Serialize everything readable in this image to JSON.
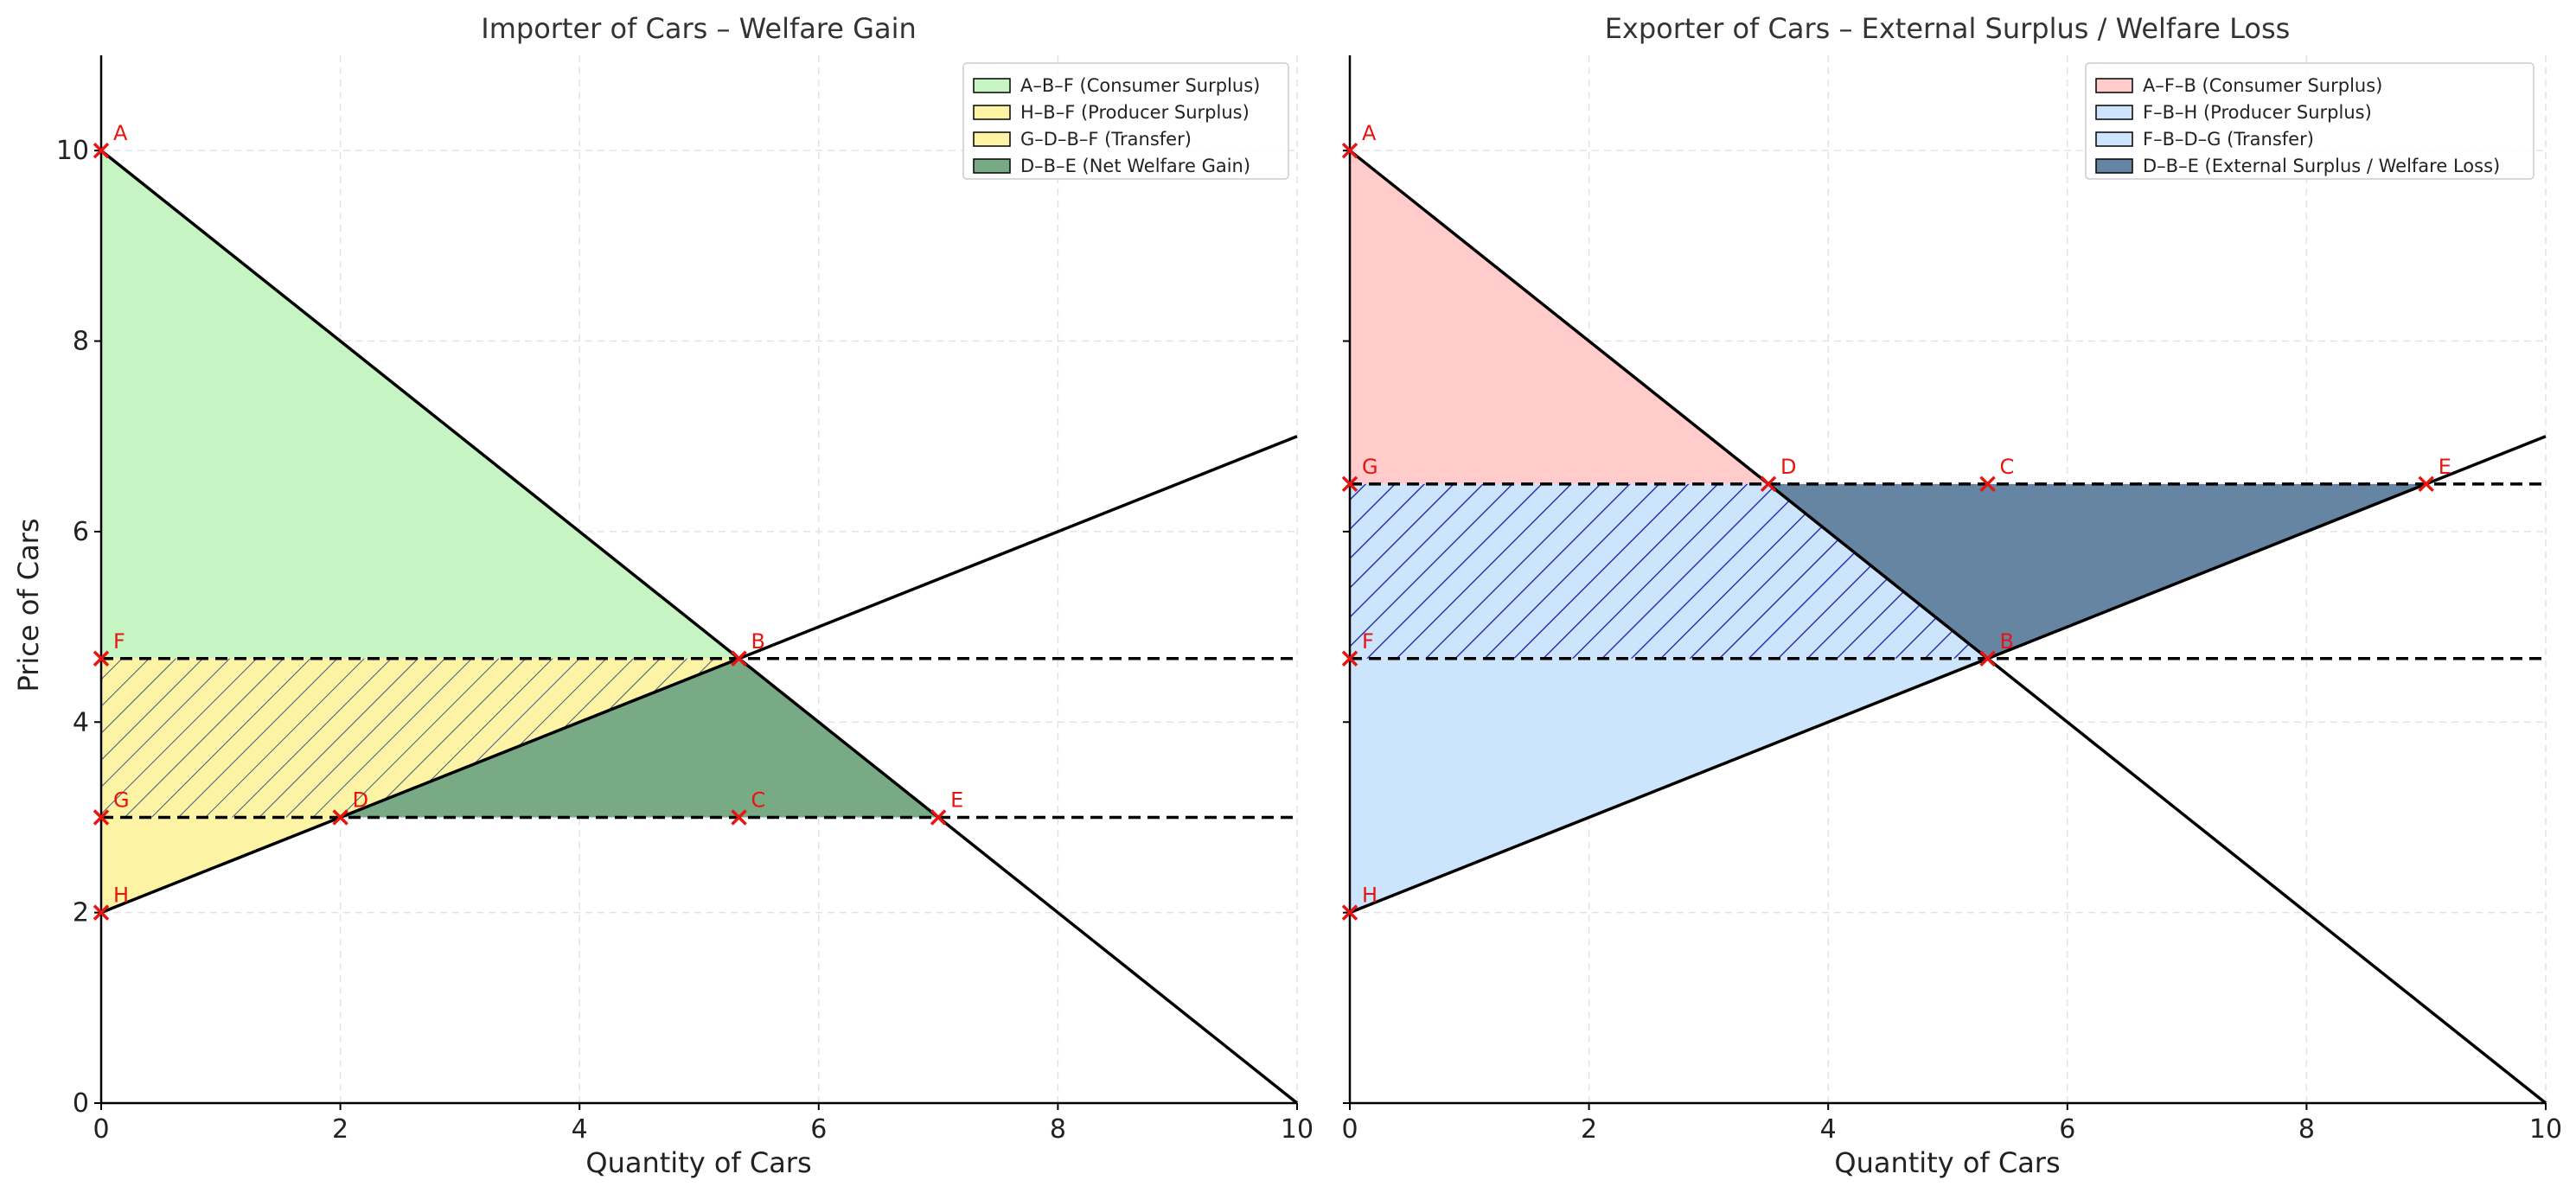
{
  "chart_data": [
    {
      "type": "area",
      "title": "Importer of Cars – Welfare Gain",
      "xlabel": "Quantity of Cars",
      "ylabel": "Price of Cars",
      "xlim": [
        0,
        10
      ],
      "ylim": [
        0,
        11
      ],
      "xticks": [
        0,
        2,
        4,
        6,
        8,
        10
      ],
      "yticks": [
        0,
        2,
        4,
        6,
        8,
        10
      ],
      "grid": true,
      "legend_position": "top-right",
      "lines": [
        {
          "name": "demand",
          "style": "solid",
          "points": [
            [
              0,
              10
            ],
            [
              10,
              0
            ]
          ]
        },
        {
          "name": "supply",
          "style": "solid",
          "points": [
            [
              0,
              2
            ],
            [
              10,
              7
            ]
          ]
        },
        {
          "name": "price-upper",
          "style": "dashed",
          "points": [
            [
              0,
              4.667
            ],
            [
              10,
              4.667
            ]
          ]
        },
        {
          "name": "price-lower",
          "style": "dashed",
          "points": [
            [
              0,
              3
            ],
            [
              10,
              3
            ]
          ]
        }
      ],
      "regions": [
        {
          "label": "A–B–F (Consumer Surplus)",
          "fill": "#c6f5c3",
          "hatch": false,
          "points": [
            [
              0,
              10
            ],
            [
              5.333,
              4.667
            ],
            [
              0,
              4.667
            ]
          ]
        },
        {
          "label": "H–B–F (Producer Surplus)",
          "fill": "#fdf3a5",
          "hatch": false,
          "points": [
            [
              0,
              2
            ],
            [
              5.333,
              4.667
            ],
            [
              0,
              4.667
            ]
          ]
        },
        {
          "label": "G–D–B–F (Transfer)",
          "fill": "#fdf3a5",
          "hatch": true,
          "hatch_color": "#3d5a80",
          "points": [
            [
              0,
              3
            ],
            [
              2,
              3
            ],
            [
              5.333,
              4.667
            ],
            [
              0,
              4.667
            ]
          ]
        },
        {
          "label": "D–B–E (Net Welfare Gain)",
          "fill": "#79aa86",
          "hatch": false,
          "points": [
            [
              2,
              3
            ],
            [
              5.333,
              4.667
            ],
            [
              7,
              3
            ]
          ]
        }
      ],
      "points": [
        {
          "label": "A",
          "x": 0,
          "y": 10
        },
        {
          "label": "F",
          "x": 0,
          "y": 4.667
        },
        {
          "label": "B",
          "x": 5.333,
          "y": 4.667
        },
        {
          "label": "G",
          "x": 0,
          "y": 3
        },
        {
          "label": "D",
          "x": 2,
          "y": 3
        },
        {
          "label": "C",
          "x": 5.333,
          "y": 3
        },
        {
          "label": "E",
          "x": 7,
          "y": 3
        },
        {
          "label": "H",
          "x": 0,
          "y": 2
        }
      ]
    },
    {
      "type": "area",
      "title": "Exporter of Cars – External Surplus / Welfare Loss",
      "xlabel": "Quantity of Cars",
      "ylabel": "",
      "xlim": [
        0,
        10
      ],
      "ylim": [
        0,
        11
      ],
      "xticks": [
        0,
        2,
        4,
        6,
        8,
        10
      ],
      "yticks": [
        0,
        2,
        4,
        6,
        8,
        10
      ],
      "grid": true,
      "legend_position": "top-right",
      "lines": [
        {
          "name": "demand",
          "style": "solid",
          "points": [
            [
              0,
              10
            ],
            [
              10,
              0
            ]
          ]
        },
        {
          "name": "supply",
          "style": "solid",
          "points": [
            [
              0,
              2
            ],
            [
              10,
              7
            ]
          ]
        },
        {
          "name": "price-upper",
          "style": "dashed",
          "points": [
            [
              0,
              6.5
            ],
            [
              10,
              6.5
            ]
          ]
        },
        {
          "name": "price-lower",
          "style": "dashed",
          "points": [
            [
              0,
              4.667
            ],
            [
              10,
              4.667
            ]
          ]
        }
      ],
      "regions": [
        {
          "label": "A–F–B (Consumer Surplus)",
          "fill": "#ffcbcb",
          "hatch": false,
          "points": [
            [
              0,
              10
            ],
            [
              3.5,
              6.5
            ],
            [
              0,
              6.5
            ]
          ]
        },
        {
          "label": "F–B–H (Producer Surplus)",
          "fill": "#cce4fc",
          "hatch": false,
          "points": [
            [
              0,
              2
            ],
            [
              5.333,
              4.667
            ],
            [
              0,
              4.667
            ]
          ]
        },
        {
          "label": "F–B–D–G (Transfer)",
          "fill": "#cce4fc",
          "hatch": true,
          "hatch_color": "#1a1aa8",
          "points": [
            [
              0,
              6.5
            ],
            [
              3.5,
              6.5
            ],
            [
              5.333,
              4.667
            ],
            [
              0,
              4.667
            ]
          ]
        },
        {
          "label": "D–B–E (External Surplus / Welfare Loss)",
          "fill": "#6685a3",
          "hatch": false,
          "points": [
            [
              3.5,
              6.5
            ],
            [
              5.333,
              4.667
            ],
            [
              9,
              6.5
            ]
          ]
        }
      ],
      "points": [
        {
          "label": "A",
          "x": 0,
          "y": 10
        },
        {
          "label": "G",
          "x": 0,
          "y": 6.5
        },
        {
          "label": "D",
          "x": 3.5,
          "y": 6.5
        },
        {
          "label": "C",
          "x": 5.333,
          "y": 6.5
        },
        {
          "label": "E",
          "x": 9,
          "y": 6.5
        },
        {
          "label": "F",
          "x": 0,
          "y": 4.667
        },
        {
          "label": "B",
          "x": 5.333,
          "y": 4.667
        },
        {
          "label": "H",
          "x": 0,
          "y": 2
        }
      ]
    }
  ],
  "colors": {
    "line": "#000000",
    "point_marker": "#e8140f",
    "grid": "#e3e3e3"
  }
}
